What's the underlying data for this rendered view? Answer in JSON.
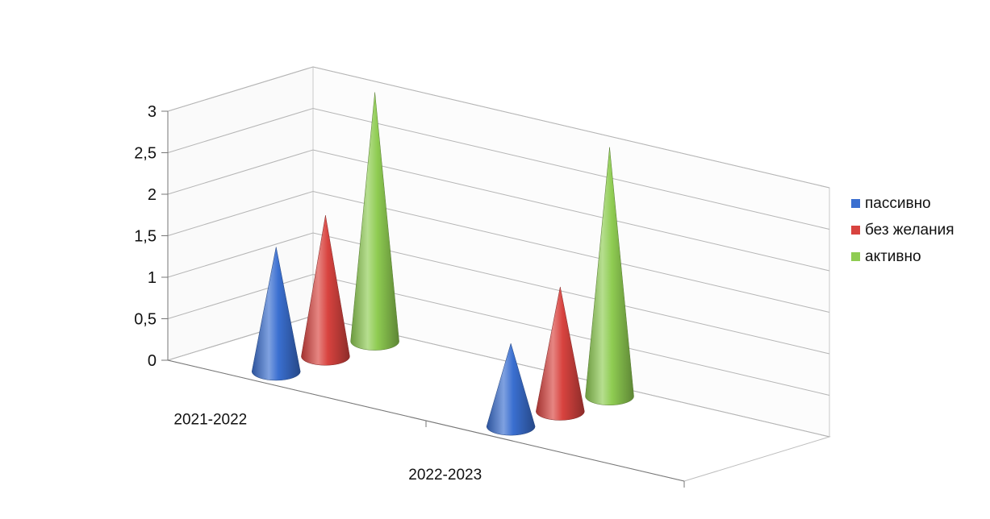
{
  "chart_data": {
    "type": "bar",
    "style": "3d-cone",
    "categories": [
      "2021-2022",
      "2022-2023"
    ],
    "series": [
      {
        "name": "пассивно",
        "values": [
          1.5,
          1
        ],
        "color": "#3a6fd0"
      },
      {
        "name": "без желания",
        "values": [
          1.7,
          1.5
        ],
        "color": "#d8433f"
      },
      {
        "name": "активно",
        "values": [
          3,
          3
        ],
        "color": "#8fcc52"
      }
    ],
    "y_ticks": [
      "0",
      "0,5",
      "1",
      "1,5",
      "2",
      "2,5",
      "3"
    ],
    "ylim": [
      0,
      3
    ],
    "grid": true,
    "legend_position": "right",
    "title": "",
    "xlabel": "",
    "ylabel": ""
  }
}
